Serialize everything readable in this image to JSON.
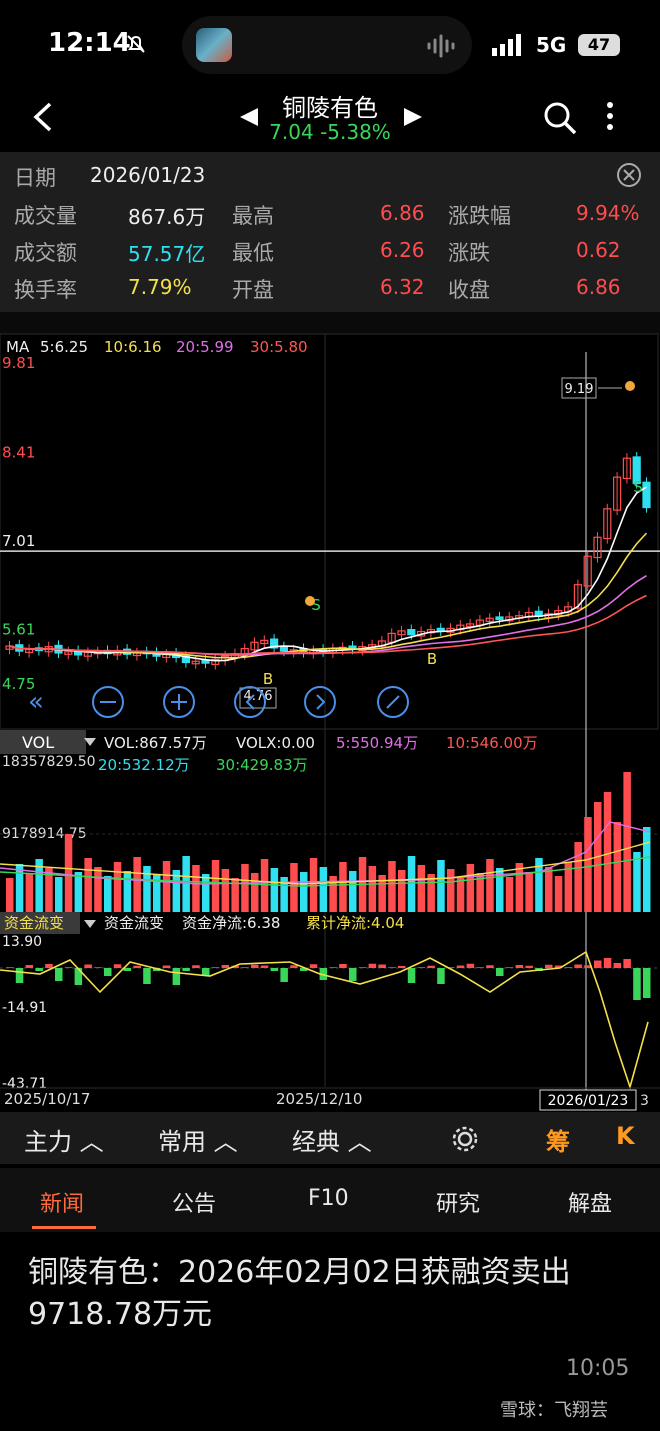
{
  "status": {
    "time": "12:14",
    "network": "5G",
    "battery": "47"
  },
  "header": {
    "title": "铜陵有色",
    "price": "7.04",
    "change": "-5.38%"
  },
  "info": {
    "date_label": "日期",
    "date": "2026/01/23",
    "rows": [
      [
        {
          "l": "成交量",
          "v": "867.6万",
          "c": "wht"
        },
        {
          "l": "最高",
          "v": "6.86",
          "c": "red"
        },
        {
          "l": "涨跌幅",
          "v": "9.94%",
          "c": "red"
        }
      ],
      [
        {
          "l": "成交额",
          "v": "57.57亿",
          "c": "cyan"
        },
        {
          "l": "最低",
          "v": "6.26",
          "c": "red"
        },
        {
          "l": "涨跌",
          "v": "0.62",
          "c": "red"
        }
      ],
      [
        {
          "l": "换手率",
          "v": "7.79%",
          "c": "yel"
        },
        {
          "l": "开盘",
          "v": "6.32",
          "c": "red"
        },
        {
          "l": "收盘",
          "v": "6.86",
          "c": "red"
        }
      ]
    ]
  },
  "ma": {
    "label": "MA",
    "m5": "5:6.25",
    "m10": "10:6.16",
    "m20": "20:5.99",
    "m30": "30:5.80"
  },
  "price_axis": [
    "9.81",
    "8.41",
    "7.01",
    "5.61",
    "4.75"
  ],
  "price_marks": {
    "high": "9.19",
    "low": "4.76",
    "sell": "S",
    "buy": "B"
  },
  "vol": {
    "label": "VOL",
    "line1": "VOL:867.57万",
    "volx": "VOLX:0.00",
    "v5": "5:550.94万",
    "v10": "10:546.00万",
    "v20": "20:532.12万",
    "v30": "30:429.83万",
    "axis_top": "18357829.50",
    "axis_mid": "9178914.75"
  },
  "flow": {
    "label": "资金流变",
    "name": "资金流变",
    "net": "资金净流:6.38",
    "cum": "累计净流:4.04",
    "axis": [
      "13.90",
      "-14.91",
      "-43.71"
    ]
  },
  "dates": {
    "d1": "2025/10/17",
    "d2": "2025/12/10",
    "d3": "2026/01/23",
    "d3_suffix": "3"
  },
  "tabs1": [
    "主力",
    "常用",
    "经典",
    "筹",
    "K"
  ],
  "tabs2": [
    "新闻",
    "公告",
    "F10",
    "研究",
    "解盘"
  ],
  "news": {
    "title": "铜陵有色：2026年02月02日获融资卖出9718.78万元",
    "time": "10:05"
  },
  "watermark": "雪球：飞翔芸"
}
